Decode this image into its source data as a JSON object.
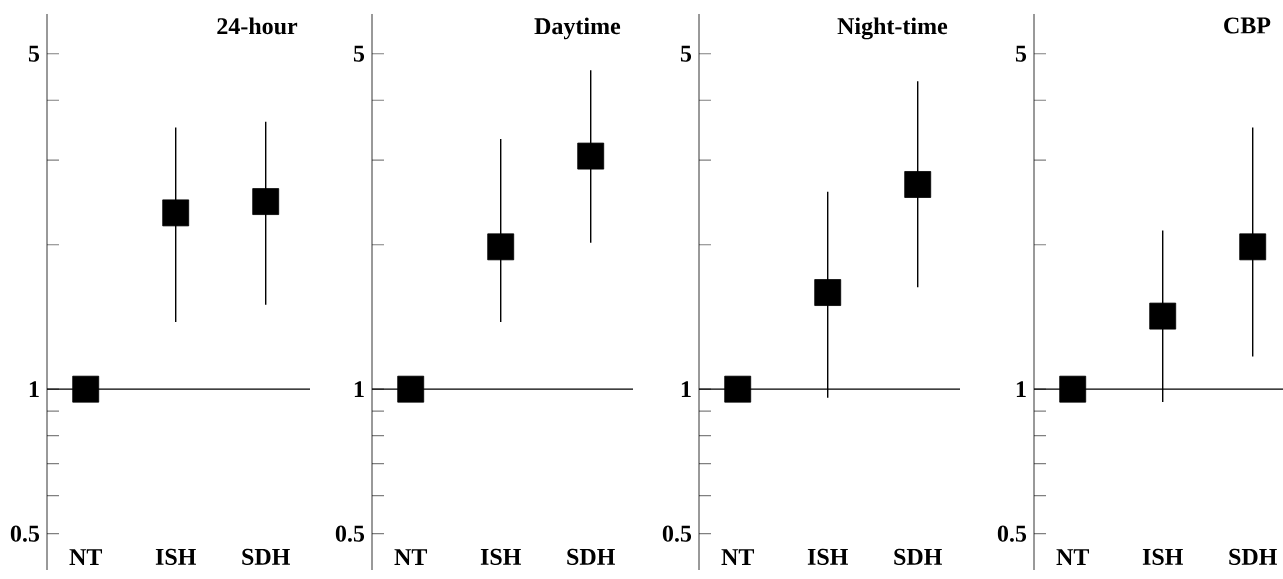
{
  "chart_data": [
    {
      "type": "scatter",
      "title": "24-hour",
      "categories": [
        "NT",
        "ISH",
        "SDH"
      ],
      "values": [
        1,
        2.33,
        2.46
      ],
      "errors": [
        null,
        [
          1.38,
          3.51
        ],
        [
          1.5,
          3.61
        ]
      ],
      "color": "#000000",
      "marker": "square",
      "log": true,
      "ylim": [
        0.42,
        6.05
      ],
      "yticks": [
        0.5,
        {
          "value": 0.6,
          "label": null
        },
        {
          "value": 0.7,
          "label": null
        },
        {
          "value": 0.8,
          "label": null
        },
        {
          "value": 0.9,
          "label": null
        },
        1,
        {
          "value": 2,
          "label": null
        },
        {
          "value": 3,
          "label": null
        },
        {
          "value": 4,
          "label": null
        },
        5
      ],
      "ref_lines": [
        {
          "axis": "y",
          "value": 1
        }
      ]
    },
    {
      "type": "scatter",
      "title": "Daytime",
      "categories": [
        "NT",
        "ISH",
        "SDH"
      ],
      "values": [
        1,
        1.98,
        3.06
      ],
      "errors": [
        null,
        [
          1.38,
          3.32
        ],
        [
          2.02,
          4.62
        ]
      ],
      "color": "#000000",
      "marker": "square",
      "log": true,
      "ylim": [
        0.42,
        6.05
      ],
      "yticks": [
        0.5,
        {
          "value": 0.6,
          "label": null
        },
        {
          "value": 0.7,
          "label": null
        },
        {
          "value": 0.8,
          "label": null
        },
        {
          "value": 0.9,
          "label": null
        },
        1,
        {
          "value": 2,
          "label": null
        },
        {
          "value": 3,
          "label": null
        },
        {
          "value": 4,
          "label": null
        },
        5
      ],
      "ref_lines": [
        {
          "axis": "y",
          "value": 1
        }
      ]
    },
    {
      "type": "scatter",
      "title": "Night-time",
      "categories": [
        "NT",
        "ISH",
        "SDH"
      ],
      "values": [
        1,
        1.59,
        2.67
      ],
      "errors": [
        null,
        [
          0.96,
          2.58
        ],
        [
          1.63,
          4.38
        ]
      ],
      "color": "#000000",
      "marker": "square",
      "log": true,
      "ylim": [
        0.42,
        6.05
      ],
      "yticks": [
        0.5,
        {
          "value": 0.6,
          "label": null
        },
        {
          "value": 0.7,
          "label": null
        },
        {
          "value": 0.8,
          "label": null
        },
        {
          "value": 0.9,
          "label": null
        },
        1,
        {
          "value": 2,
          "label": null
        },
        {
          "value": 3,
          "label": null
        },
        {
          "value": 4,
          "label": null
        },
        5
      ],
      "ref_lines": [
        {
          "axis": "y",
          "value": 1
        }
      ]
    },
    {
      "type": "scatter",
      "title": "CBP",
      "categories": [
        "NT",
        "ISH",
        "SDH"
      ],
      "values": [
        1,
        1.42,
        1.98
      ],
      "errors": [
        null,
        [
          0.94,
          2.14
        ],
        [
          1.17,
          3.51
        ]
      ],
      "color": "#000000",
      "marker": "square",
      "log": true,
      "ylim": [
        0.42,
        6.05
      ],
      "yticks": [
        0.5,
        {
          "value": 0.6,
          "label": null
        },
        {
          "value": 0.7,
          "label": null
        },
        {
          "value": 0.8,
          "label": null
        },
        {
          "value": 0.9,
          "label": null
        },
        1,
        {
          "value": 2,
          "label": null
        },
        {
          "value": 3,
          "label": null
        },
        {
          "value": 4,
          "label": null
        },
        5
      ],
      "ref_lines": [
        {
          "axis": "y",
          "value": 1
        }
      ]
    }
  ]
}
